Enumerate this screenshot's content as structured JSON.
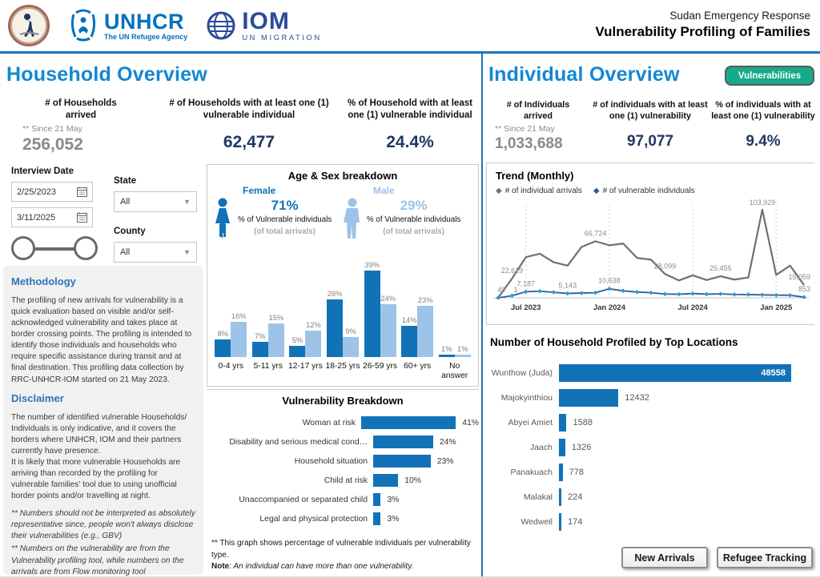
{
  "header": {
    "title_line1": "Sudan Emergency Response",
    "title_line2": "Vulnerability Profiling of Families",
    "logos": {
      "rrc": "rrc-seal",
      "unhcr_name": "UNHCR",
      "unhcr_tagline": "The UN Refugee Agency",
      "iom_name": "IOM",
      "iom_tagline": "UN MIGRATION"
    }
  },
  "colors": {
    "accent_blue": "#1387d2",
    "bar_dark_blue": "#1272b7",
    "bar_light_blue": "#9dc3e8",
    "navy_value": "#1f3864",
    "gray_value": "#8a8a8a",
    "green_button": "#17a98c",
    "trend_gray": "#707070",
    "trend_blue": "#2f5b8f"
  },
  "household": {
    "title": "Household Overview",
    "kpis": [
      {
        "label": "# of Households arrived",
        "note": "** Since 21 May",
        "value": "256,052"
      },
      {
        "label": "# of Households with at least one (1) vulnerable individual",
        "value": "62,477"
      },
      {
        "label": "% of Household with at least one (1) vulnerable individual",
        "value": "24.4%"
      }
    ]
  },
  "individual": {
    "title": "Individual Overview",
    "button": "Vulnerabilities",
    "kpis": [
      {
        "label": "# of Individuals arrived",
        "note": "** Since 21 May",
        "value": "1,033,688"
      },
      {
        "label": "# of individuals with at least one (1) vulnerability",
        "value": "97,077"
      },
      {
        "label": "% of individuals with at least one (1) vulnerability",
        "value": "9.4%"
      }
    ]
  },
  "filters": {
    "interview_date_label": "Interview Date",
    "date_from": "2/25/2023",
    "date_to": "3/11/2025",
    "state_label": "State",
    "state_value": "All",
    "county_label": "County",
    "county_value": "All"
  },
  "methodology": {
    "heading": "Methodology",
    "body": "The profiling of new arrivals for vulnerability is a quick evaluation based on visible and/or self-acknowledged vulnerability and takes place at border crossing points. The profiling is intended to identify those individuals and households who require specific assistance during transit and at final destination. This profiling data collection by RRC-UNHCR-IOM started on 21 May 2023.",
    "disclaimer_heading": "Disclaimer",
    "disclaimer_p1": "The number of identified vulnerable Households/ Individuals is only indicative, and it covers the borders where UNHCR, IOM and their partners currently have presence.",
    "disclaimer_p2": "It is likely that more vulnerable Households are arriving than recorded by the profiling for vulnerable families' tool due to using unofficial border points and/or travelling at night.",
    "note1": "**  Numbers should not be interpreted as absolutely representative since, people won't always disclose their vulnerabilities (e.g., GBV)",
    "note2": "** Numbers on the vulnerability are from the Vulnerability profiling tool, while numbers on the arrivals are from Flow monitoring tool"
  },
  "buttons": {
    "new_arrivals": "New Arrivals",
    "refugee_tracking": "Refugee Tracking"
  },
  "chart_data": [
    {
      "id": "age_sex",
      "type": "bar",
      "title": "Age & Sex breakdown",
      "female": {
        "label": "Female",
        "pct": "71%",
        "desc": "% of Vulnerable individuals",
        "sub": "(of total arrivals)"
      },
      "male": {
        "label": "Male",
        "pct": "29%",
        "desc": "% of Vulnerable individuals",
        "sub": "(of total arrivals)"
      },
      "categories": [
        "0-4 yrs",
        "5-11 yrs",
        "12-17 yrs",
        "18-25 yrs",
        "26-59 yrs",
        "60+ yrs",
        "No answer"
      ],
      "series": [
        {
          "name": "% of Vulnerable individuals",
          "color": "#1272b7",
          "values": [
            8,
            7,
            5,
            26,
            39,
            14,
            1
          ]
        },
        {
          "name": "% of total arrivals",
          "color": "#9dc3e8",
          "values": [
            16,
            15,
            12,
            9,
            24,
            23,
            1
          ]
        }
      ],
      "unit": "%",
      "ylim": [
        0,
        39
      ]
    },
    {
      "id": "vulnerability",
      "type": "bar",
      "orientation": "horizontal",
      "title": "Vulnerability Breakdown",
      "categories": [
        "Woman at risk",
        "Disability and serious medical cond…",
        "Household situation",
        "Child at risk",
        "Unaccompanied or separated child",
        "Legal and physical protection"
      ],
      "values": [
        41,
        24,
        23,
        10,
        3,
        3
      ],
      "unit": "%",
      "color": "#1272b7",
      "footnote1": "** This graph shows percentage of vulnerable individuals per vulnerability type.",
      "note_label": "Note",
      "note_text": ": An individual can have more than one vulnerability."
    },
    {
      "id": "trend",
      "type": "line",
      "title": "Trend (Monthly)",
      "legend": [
        {
          "label": "# of individual arrivals",
          "color": "#707070"
        },
        {
          "label": "# of vulnerable individuals",
          "color": "#2f5b8f"
        }
      ],
      "x_ticks": [
        {
          "index": 2,
          "label": "Jul 2023"
        },
        {
          "index": 8,
          "label": "Jan 2024"
        },
        {
          "index": 14,
          "label": "Jul 2024"
        },
        {
          "index": 20,
          "label": "Jan 2025"
        }
      ],
      "ylim": [
        0,
        103929
      ],
      "series": [
        {
          "name": "# of individual arrivals",
          "color": "#707070",
          "values": [
            49,
            22619,
            48000,
            52000,
            42000,
            38000,
            60000,
            66724,
            62000,
            64000,
            47000,
            45000,
            28099,
            20500,
            26500,
            21000,
            25455,
            21500,
            24000,
            103929,
            27000,
            38000,
            15059
          ],
          "labels": [
            {
              "i": 0,
              "t": "49"
            },
            {
              "i": 1,
              "t": "22,619"
            },
            {
              "i": 7,
              "t": "66,724"
            },
            {
              "i": 12,
              "t": "28,099"
            },
            {
              "i": 16,
              "t": "25,455"
            },
            {
              "i": 19,
              "t": "103,929"
            },
            {
              "i": 22,
              "t": "15,059"
            }
          ]
        },
        {
          "name": "# of vulnerable individuals",
          "color": "#2f5b8f",
          "marker_color": "#2e96d1",
          "values": [
            1,
            2500,
            7187,
            7800,
            6500,
            5143,
            5600,
            6000,
            10638,
            8200,
            6800,
            6000,
            4500,
            4200,
            5000,
            4300,
            4600,
            4000,
            3800,
            3500,
            3200,
            3000,
            853
          ],
          "labels": [
            {
              "i": 0,
              "t": "1"
            },
            {
              "i": 2,
              "t": "7,187"
            },
            {
              "i": 5,
              "t": "5,143"
            },
            {
              "i": 8,
              "t": "10,638"
            },
            {
              "i": 22,
              "t": "853"
            }
          ]
        }
      ]
    },
    {
      "id": "locations",
      "type": "bar",
      "orientation": "horizontal",
      "title": "Number of Household Profiled by Top Locations",
      "categories": [
        "Wunthow (Juda)",
        "Majokyinthiou",
        "Abyei Amiet",
        "Jaach",
        "Panakuach",
        "Malakal",
        "Wedweil"
      ],
      "values": [
        48558,
        12432,
        1588,
        1326,
        778,
        224,
        174
      ],
      "color": "#1272b7"
    }
  ]
}
